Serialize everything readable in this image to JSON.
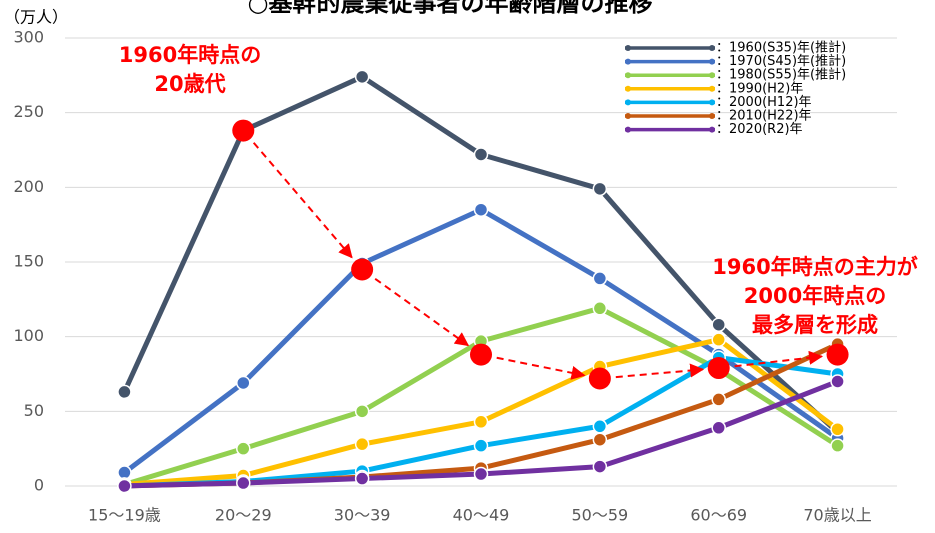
{
  "chart_data": {
    "type": "line",
    "title": "○基幹的農業従事者の年齢階層の推移",
    "y_label": "（万人）",
    "categories": [
      "15〜19歳",
      "20〜29",
      "30〜39",
      "40〜49",
      "50〜59",
      "60〜69",
      "70歳以上"
    ],
    "ylim": [
      0,
      300
    ],
    "yticks": [
      0,
      50,
      100,
      150,
      200,
      250,
      300
    ],
    "grid": true,
    "series": [
      {
        "name": "：1960(S35)年(推計)",
        "color": "#44546a",
        "values": [
          63,
          238,
          274,
          222,
          199,
          108,
          36
        ]
      },
      {
        "name": "：1970(S45)年(推計)",
        "color": "#4472c4",
        "values": [
          9,
          69,
          149,
          185,
          139,
          88,
          32
        ]
      },
      {
        "name": "：1980(S55)年(推計)",
        "color": "#92d050",
        "values": [
          1,
          25,
          50,
          97,
          119,
          78,
          27
        ]
      },
      {
        "name": "：1990(H2)年",
        "color": "#ffc000",
        "values": [
          1,
          7,
          28,
          43,
          80,
          98,
          38
        ]
      },
      {
        "name": "：2000(H12)年",
        "color": "#00b0f0",
        "values": [
          0,
          3,
          10,
          27,
          40,
          86,
          75
        ]
      },
      {
        "name": "：2010(H22)年",
        "color": "#c55a11",
        "values": [
          0,
          2,
          6,
          12,
          31,
          58,
          95
        ]
      },
      {
        "name": "：2020(R2)年",
        "color": "#7030a0",
        "values": [
          0,
          2,
          5,
          8,
          13,
          39,
          70
        ]
      }
    ],
    "highlight": {
      "color": "#ff0000",
      "values": [
        null,
        238,
        145,
        88,
        72,
        79,
        88
      ]
    },
    "annotations": [
      {
        "lines": [
          "1960年時点の",
          "20歳代"
        ]
      },
      {
        "lines": [
          "1960年時点の主力が",
          "2000年時点の",
          "最多層を形成"
        ]
      }
    ]
  }
}
